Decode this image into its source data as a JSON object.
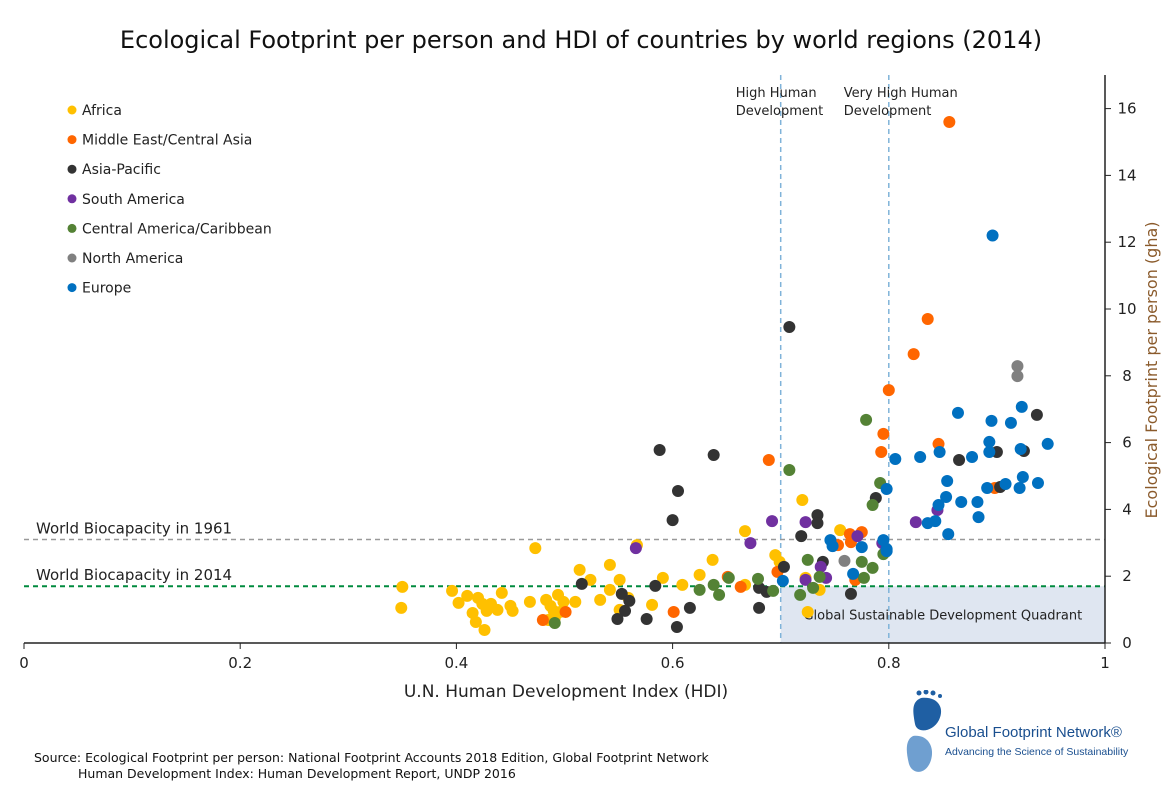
{
  "chart_data": {
    "type": "scatter",
    "title": "Ecological Footprint per person and HDI of countries by world regions (2014)",
    "xlabel": "U.N. Human Development Index  (HDI)",
    "ylabel": "Ecological Footprint per person (gha)",
    "xlim": [
      0,
      1
    ],
    "ylim": [
      0,
      17
    ],
    "xticks": [
      "0",
      "0.2",
      "0.4",
      "0.6",
      "0.8",
      "1"
    ],
    "xtick_values": [
      0,
      0.2,
      0.4,
      0.6,
      0.8,
      1
    ],
    "yticks": [
      "0",
      "2",
      "4",
      "6",
      "8",
      "10",
      "12",
      "14",
      "16"
    ],
    "ytick_values": [
      0,
      2,
      4,
      6,
      8,
      10,
      12,
      14,
      16
    ],
    "legend_position": "top-left",
    "reference_lines": [
      {
        "label": "World Biocapacity in 1961",
        "axis": "y",
        "value": 3.1,
        "color": "#999999"
      },
      {
        "label": "World Biocapacity in 2014",
        "axis": "y",
        "value": 1.7,
        "color": "#008a3e"
      },
      {
        "label": "High Human Development",
        "axis": "x",
        "value": 0.7,
        "color": "#7fb3d9"
      },
      {
        "label": "Very High Human Development",
        "axis": "x",
        "value": 0.8,
        "color": "#7fb3d9"
      }
    ],
    "quadrant": {
      "label": "Global Sustainable Development Quadrant",
      "x": [
        0.7,
        1
      ],
      "y": [
        0,
        1.7
      ],
      "color": "#dfe6f1"
    },
    "series": [
      {
        "name": "Africa",
        "color": "#FFC000",
        "points": [
          [
            0.35,
            1.68
          ],
          [
            0.349,
            1.05
          ],
          [
            0.396,
            1.56
          ],
          [
            0.402,
            1.2
          ],
          [
            0.41,
            1.41
          ],
          [
            0.415,
            0.9
          ],
          [
            0.42,
            1.35
          ],
          [
            0.418,
            0.63
          ],
          [
            0.424,
            1.17
          ],
          [
            0.428,
            0.96
          ],
          [
            0.426,
            0.39
          ],
          [
            0.432,
            1.17
          ],
          [
            0.438,
            0.99
          ],
          [
            0.442,
            1.5
          ],
          [
            0.45,
            1.11
          ],
          [
            0.452,
            0.96
          ],
          [
            0.468,
            1.23
          ],
          [
            0.473,
            2.84
          ],
          [
            0.483,
            1.29
          ],
          [
            0.487,
            1.11
          ],
          [
            0.49,
            0.96
          ],
          [
            0.494,
            1.44
          ],
          [
            0.499,
            1.23
          ],
          [
            0.485,
            0.69
          ],
          [
            0.491,
            0.75
          ],
          [
            0.496,
            0.93
          ],
          [
            0.514,
            2.19
          ],
          [
            0.51,
            1.23
          ],
          [
            0.524,
            1.89
          ],
          [
            0.533,
            1.29
          ],
          [
            0.542,
            2.34
          ],
          [
            0.542,
            1.59
          ],
          [
            0.551,
            1.89
          ],
          [
            0.559,
            1.35
          ],
          [
            0.551,
            0.99
          ],
          [
            0.567,
            2.93
          ],
          [
            0.581,
            1.14
          ],
          [
            0.591,
            1.95
          ],
          [
            0.609,
            1.74
          ],
          [
            0.625,
            2.04
          ],
          [
            0.637,
            2.49
          ],
          [
            0.667,
            3.35
          ],
          [
            0.667,
            1.74
          ],
          [
            0.695,
            2.63
          ],
          [
            0.699,
            2.43
          ],
          [
            0.72,
            4.28
          ],
          [
            0.723,
            1.95
          ],
          [
            0.725,
            0.93
          ],
          [
            0.755,
            3.38
          ],
          [
            0.736,
            1.59
          ]
        ]
      },
      {
        "name": "Middle East/Central Asia",
        "color": "#FF6600",
        "points": [
          [
            0.48,
            0.69
          ],
          [
            0.501,
            0.93
          ],
          [
            0.601,
            0.93
          ],
          [
            0.651,
            1.98
          ],
          [
            0.663,
            1.68
          ],
          [
            0.689,
            5.48
          ],
          [
            0.697,
            2.13
          ],
          [
            0.764,
            3.26
          ],
          [
            0.765,
            3.02
          ],
          [
            0.775,
            3.32
          ],
          [
            0.769,
            1.89
          ],
          [
            0.795,
            6.26
          ],
          [
            0.793,
            5.72
          ],
          [
            0.8,
            7.57
          ],
          [
            0.823,
            8.65
          ],
          [
            0.836,
            9.7
          ],
          [
            0.846,
            5.96
          ],
          [
            0.856,
            15.6
          ],
          [
            0.898,
            4.64
          ],
          [
            0.753,
            2.93
          ]
        ]
      },
      {
        "name": "Asia-Pacific",
        "color": "#333333",
        "points": [
          [
            0.516,
            1.77
          ],
          [
            0.553,
            1.47
          ],
          [
            0.56,
            1.26
          ],
          [
            0.556,
            0.96
          ],
          [
            0.549,
            0.72
          ],
          [
            0.576,
            0.72
          ],
          [
            0.584,
            1.71
          ],
          [
            0.604,
            0.48
          ],
          [
            0.616,
            1.05
          ],
          [
            0.6,
            3.68
          ],
          [
            0.588,
            5.78
          ],
          [
            0.605,
            4.55
          ],
          [
            0.638,
            5.63
          ],
          [
            0.68,
            1.65
          ],
          [
            0.687,
            1.53
          ],
          [
            0.68,
            1.05
          ],
          [
            0.703,
            2.28
          ],
          [
            0.719,
            3.2
          ],
          [
            0.734,
            3.83
          ],
          [
            0.734,
            3.59
          ],
          [
            0.739,
            2.43
          ],
          [
            0.765,
            1.47
          ],
          [
            0.788,
            4.34
          ],
          [
            0.708,
            9.46
          ],
          [
            0.865,
            5.48
          ],
          [
            0.9,
            5.72
          ],
          [
            0.903,
            4.67
          ],
          [
            0.937,
            6.83
          ],
          [
            0.925,
            5.75
          ]
        ]
      },
      {
        "name": "South America",
        "color": "#7030A0",
        "points": [
          [
            0.566,
            2.84
          ],
          [
            0.672,
            2.99
          ],
          [
            0.692,
            3.65
          ],
          [
            0.723,
            3.62
          ],
          [
            0.737,
            2.28
          ],
          [
            0.742,
            1.95
          ],
          [
            0.771,
            3.2
          ],
          [
            0.794,
            2.99
          ],
          [
            0.825,
            3.62
          ],
          [
            0.845,
            3.98
          ],
          [
            0.723,
            1.89
          ]
        ]
      },
      {
        "name": "Central America/Caribbean",
        "color": "#548235",
        "points": [
          [
            0.491,
            0.6
          ],
          [
            0.625,
            1.59
          ],
          [
            0.638,
            1.74
          ],
          [
            0.643,
            1.44
          ],
          [
            0.679,
            1.92
          ],
          [
            0.708,
            5.18
          ],
          [
            0.718,
            1.44
          ],
          [
            0.725,
            2.49
          ],
          [
            0.73,
            1.65
          ],
          [
            0.736,
            1.98
          ],
          [
            0.775,
            2.43
          ],
          [
            0.777,
            1.95
          ],
          [
            0.779,
            6.68
          ],
          [
            0.785,
            4.13
          ],
          [
            0.792,
            4.79
          ],
          [
            0.795,
            2.66
          ],
          [
            0.785,
            2.25
          ],
          [
            0.693,
            1.56
          ],
          [
            0.652,
            1.95
          ]
        ]
      },
      {
        "name": "North America",
        "color": "#808080",
        "points": [
          [
            0.759,
            2.46
          ],
          [
            0.919,
            8.29
          ],
          [
            0.919,
            7.99
          ]
        ]
      },
      {
        "name": "Europe",
        "color": "#0070C0",
        "points": [
          [
            0.702,
            1.86
          ],
          [
            0.746,
            3.08
          ],
          [
            0.748,
            2.9
          ],
          [
            0.767,
            2.07
          ],
          [
            0.775,
            2.87
          ],
          [
            0.795,
            3.08
          ],
          [
            0.798,
            2.81
          ],
          [
            0.798,
            4.61
          ],
          [
            0.806,
            5.51
          ],
          [
            0.829,
            5.57
          ],
          [
            0.847,
            5.72
          ],
          [
            0.864,
            6.89
          ],
          [
            0.854,
            4.85
          ],
          [
            0.853,
            4.37
          ],
          [
            0.846,
            4.13
          ],
          [
            0.836,
            3.59
          ],
          [
            0.843,
            3.65
          ],
          [
            0.855,
            3.26
          ],
          [
            0.867,
            4.22
          ],
          [
            0.877,
            5.57
          ],
          [
            0.882,
            4.22
          ],
          [
            0.883,
            3.77
          ],
          [
            0.893,
            6.02
          ],
          [
            0.895,
            6.65
          ],
          [
            0.896,
            12.2
          ],
          [
            0.893,
            5.72
          ],
          [
            0.891,
            4.64
          ],
          [
            0.908,
            4.76
          ],
          [
            0.913,
            6.59
          ],
          [
            0.923,
            7.07
          ],
          [
            0.922,
            5.81
          ],
          [
            0.921,
            4.64
          ],
          [
            0.924,
            4.97
          ],
          [
            0.938,
            4.79
          ],
          [
            0.947,
            5.96
          ],
          [
            0.798,
            2.75
          ]
        ]
      }
    ]
  },
  "source": {
    "line1": "Source: Ecological Footprint per person: National Footprint Accounts 2018 Edition, Global Footprint Network",
    "line2": "Human Development Index: Human Development Report, UNDP 2016"
  },
  "logo": {
    "name": "Global Footprint Network®",
    "tagline": "Advancing the Science of Sustainability"
  }
}
